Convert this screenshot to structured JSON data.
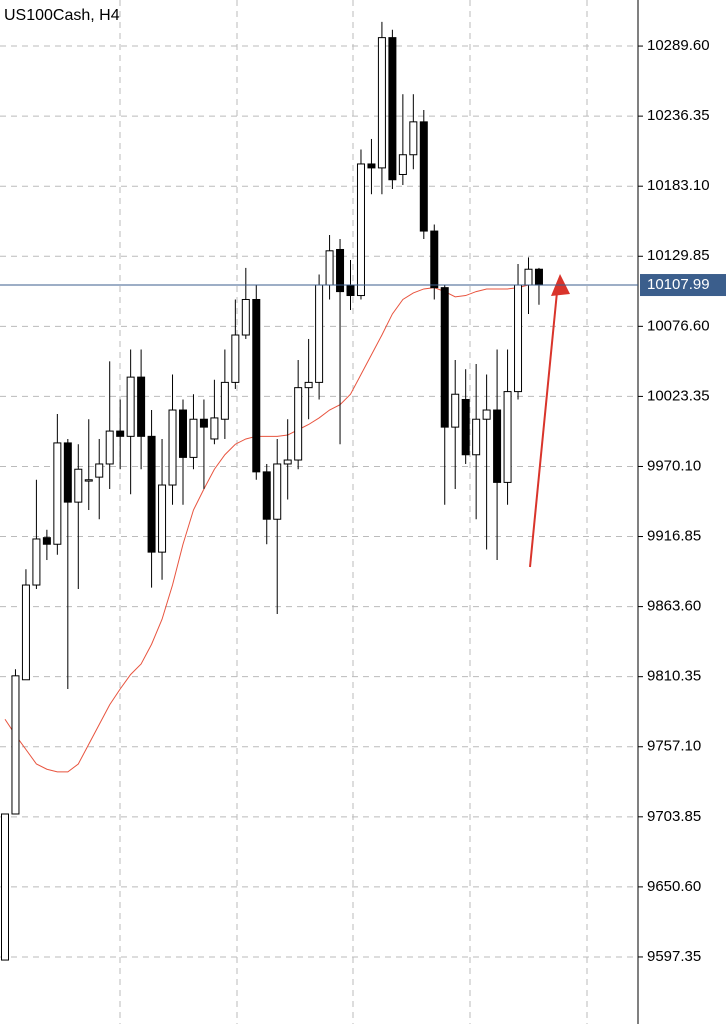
{
  "chart_data": {
    "type": "candlestick",
    "title": "US100Cash, H4",
    "ylim": [
      9546.4,
      10324.6
    ],
    "yticks": [
      {
        "value": 10289.6,
        "label": "10289.60"
      },
      10236.35,
      {
        "value": 10183.1,
        "label": "10183.10"
      },
      10129.85,
      {
        "value": 10076.6,
        "label": "10076.60"
      },
      10023.35,
      {
        "value": 9970.1,
        "label": "9970.10"
      },
      9916.85,
      {
        "value": 9863.6,
        "label": "9863.60"
      },
      9810.35,
      {
        "value": 9757.1,
        "label": "9757.10"
      },
      9703.85,
      {
        "value": 9650.6,
        "label": "9650.60"
      },
      9597.35
    ],
    "grid": true,
    "current_price": 10107.99,
    "current_price_color": "#3b5e8c",
    "up_color": "#ffffff",
    "down_color": "#000000",
    "ma_color": "#e8543f",
    "open": [
      9595,
      9706,
      9808,
      9880,
      9916,
      9911,
      9988,
      9943,
      9959,
      9962,
      9972,
      9997,
      9993,
      10038,
      9993,
      9905,
      9956,
      10013,
      9977,
      10006,
      9991,
      10006,
      10034,
      10070,
      10097,
      9966,
      9930,
      9972,
      9975,
      10030,
      10034,
      10108,
      10135,
      10108,
      10100,
      10200,
      10197,
      10296,
      10192,
      10207,
      10232,
      10149,
      10106,
      10000,
      10021,
      9979,
      10006,
      10013,
      9958,
      10027,
      10108,
      10120
    ],
    "high": [
      9706,
      9816,
      9892,
      9960,
      9922,
      10010,
      9991,
      9987,
      10006,
      9991,
      10050,
      10021,
      10059,
      10059,
      10013,
      9991,
      10040,
      10021,
      10025,
      10021,
      10036,
      10059,
      10097,
      10121,
      10108,
      9972,
      9991,
      10006,
      10051,
      10067,
      10116,
      10146,
      10143,
      10127,
      10211,
      10219,
      10308,
      10302,
      10253,
      10253,
      10241,
      10154,
      10108,
      10051,
      10044,
      10048,
      10040,
      10059,
      10059,
      10124,
      10129,
      10121
    ],
    "low": [
      9595,
      9706,
      9808,
      9877,
      9899,
      9903,
      9801,
      9877,
      9937,
      9930,
      9953,
      9968,
      9949,
      9968,
      9878,
      9884,
      9941,
      9941,
      9968,
      9953,
      9987,
      9991,
      10029,
      10067,
      9960,
      9911,
      9858,
      9945,
      9968,
      10006,
      10021,
      10097,
      9987,
      10089,
      10097,
      10177,
      10177,
      10181,
      10184,
      10196,
      10143,
      10097,
      9941,
      9953,
      9972,
      9930,
      9907,
      9899,
      9941,
      10021,
      10086,
      10093
    ],
    "close": [
      9706,
      9811,
      9880,
      9915,
      9911,
      9988,
      9943,
      9968,
      9960,
      9972,
      9997,
      9993,
      10038,
      9993,
      9905,
      9956,
      10013,
      9977,
      10006,
      10000,
      10007,
      10034,
      10070,
      10097,
      9966,
      9930,
      9972,
      9975,
      10030,
      10034,
      10108,
      10134,
      10103,
      10100,
      10200,
      10197,
      10296,
      10188,
      10207,
      10232,
      10149,
      10106,
      10000,
      10025,
      9979,
      10006,
      10013,
      9958,
      10027,
      10108,
      10120,
      10108
    ],
    "ma_values": [
      9778,
      9766,
      9755,
      9744,
      9740,
      9738,
      9738,
      9744,
      9759,
      9774,
      9789,
      9801,
      9812,
      9820,
      9835,
      9854,
      9880,
      9911,
      9937,
      9953,
      9968,
      9979,
      9987,
      9991,
      9993,
      9993,
      9993,
      9994,
      9998,
      10002,
      10007,
      10013,
      10017,
      10025,
      10040,
      10055,
      10070,
      10086,
      10097,
      10102,
      10105,
      10106,
      10103,
      10099,
      10100,
      10103,
      10105,
      10105,
      10105,
      10106,
      10108,
      10108
    ]
  }
}
